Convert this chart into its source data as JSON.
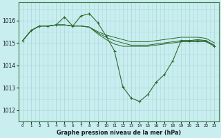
{
  "title": "Graphe pression niveau de la mer (hPa)",
  "background_color": "#c8eef0",
  "grid_color": "#b0d8da",
  "line_color": "#2d6a2d",
  "x_ticks": [
    0,
    1,
    2,
    3,
    4,
    5,
    6,
    7,
    8,
    9,
    10,
    11,
    12,
    13,
    14,
    15,
    16,
    17,
    18,
    19,
    20,
    21,
    22,
    23
  ],
  "ylim": [
    1011.5,
    1016.8
  ],
  "yticks": [
    1012,
    1013,
    1014,
    1015,
    1016
  ],
  "series": [
    [
      1015.1,
      1015.55,
      1015.75,
      1015.75,
      1015.8,
      1016.15,
      1015.75,
      1016.2,
      1016.3,
      1015.9,
      1015.3,
      1014.65,
      1013.05,
      1012.55,
      1012.4,
      1012.7,
      1013.25,
      1013.6,
      1014.2,
      1015.1,
      1015.1,
      1015.1,
      1015.1,
      1014.85
    ],
    [
      1015.1,
      1015.55,
      1015.75,
      1015.75,
      1015.8,
      1015.8,
      1015.75,
      1015.75,
      1015.7,
      1015.4,
      1015.15,
      1014.95,
      1014.85,
      1014.85,
      1014.85,
      1014.85,
      1014.9,
      1014.95,
      1015.0,
      1015.05,
      1015.05,
      1015.05,
      1015.05,
      1014.85
    ],
    [
      1015.1,
      1015.55,
      1015.75,
      1015.75,
      1015.8,
      1015.8,
      1015.75,
      1015.75,
      1015.7,
      1015.45,
      1015.25,
      1015.1,
      1015.0,
      1014.9,
      1014.9,
      1014.9,
      1014.95,
      1015.0,
      1015.05,
      1015.1,
      1015.1,
      1015.15,
      1015.1,
      1014.9
    ],
    [
      1015.1,
      1015.55,
      1015.75,
      1015.75,
      1015.8,
      1015.8,
      1015.75,
      1015.75,
      1015.7,
      1015.5,
      1015.35,
      1015.25,
      1015.15,
      1015.05,
      1015.05,
      1015.05,
      1015.1,
      1015.15,
      1015.2,
      1015.25,
      1015.25,
      1015.25,
      1015.2,
      1015.0
    ]
  ]
}
